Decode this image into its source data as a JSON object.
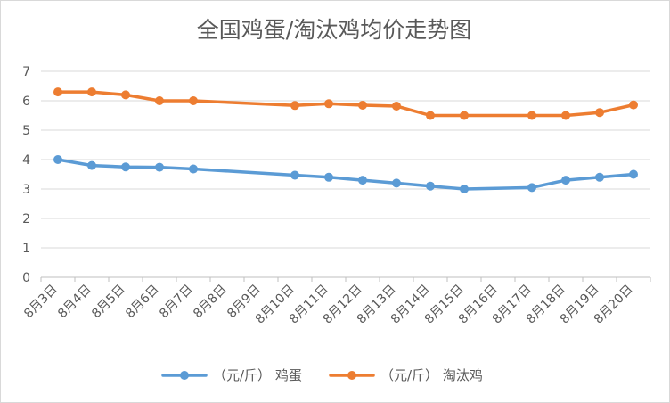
{
  "chart_data": {
    "type": "line",
    "title": "全国鸡蛋/淘汰鸡均价走势图",
    "xlabel": "",
    "ylabel": "",
    "ylim": [
      0,
      7
    ],
    "yticks": [
      0,
      1,
      2,
      3,
      4,
      5,
      6,
      7
    ],
    "grid": "y-major",
    "legend": "bottom",
    "categories": [
      "8月3日",
      "8月4日",
      "8月5日",
      "8月6日",
      "8月7日",
      "8月8日",
      "8月9日",
      "8月10日",
      "8月11日",
      "8月12日",
      "8月13日",
      "8月14日",
      "8月15日",
      "8月16日",
      "8月17日",
      "8月18日",
      "8月19日",
      "8月20日"
    ],
    "series": [
      {
        "name": "（元/斤） 鸡蛋",
        "color": "#5b9bd5",
        "values": [
          4.0,
          3.8,
          3.75,
          3.74,
          3.68,
          null,
          null,
          3.47,
          3.4,
          3.3,
          3.2,
          3.1,
          3.0,
          null,
          3.05,
          3.3,
          3.4,
          3.5
        ]
      },
      {
        "name": "（元/斤） 淘汰鸡",
        "color": "#ed7d31",
        "values": [
          6.3,
          6.3,
          6.2,
          6.0,
          6.0,
          null,
          null,
          5.84,
          5.9,
          5.85,
          5.82,
          5.5,
          5.5,
          null,
          5.5,
          5.5,
          5.6,
          5.86
        ]
      }
    ]
  }
}
